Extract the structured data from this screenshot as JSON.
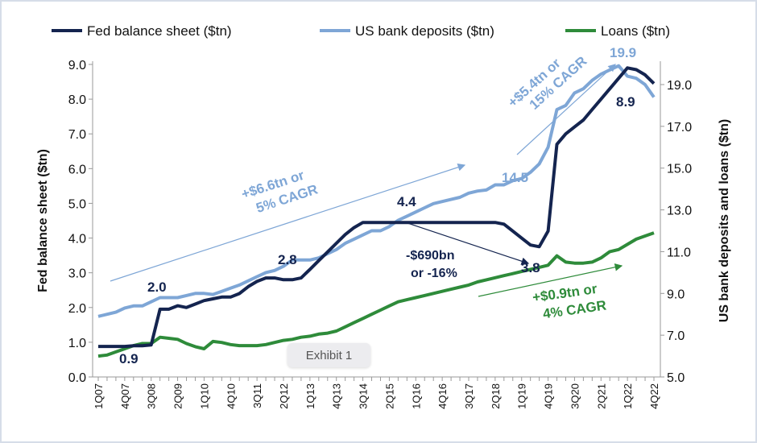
{
  "chart_data": {
    "type": "line",
    "title": "",
    "legend_position": "top",
    "legend": [
      "Fed balance sheet ($tn)",
      "US bank deposits ($tn)",
      "Loans ($tn)"
    ],
    "ylabel_left": "Fed balance sheet ($tn)",
    "ylabel_right": "US bank deposits and loans ($tn)",
    "ylim_left": [
      0,
      9
    ],
    "ylim_right": [
      5,
      20
    ],
    "yticks_left": [
      "0.0",
      "1.0",
      "2.0",
      "3.0",
      "4.0",
      "5.0",
      "6.0",
      "7.0",
      "8.0",
      "9.0"
    ],
    "yticks_right": [
      "5.0",
      "7.0",
      "9.0",
      "11.0",
      "13.0",
      "15.0",
      "17.0",
      "19.0"
    ],
    "xtick_labels": [
      "1Q07",
      "4Q07",
      "3Q08",
      "2Q09",
      "1Q10",
      "4Q10",
      "3Q11",
      "2Q12",
      "1Q13",
      "4Q13",
      "3Q14",
      "2Q15",
      "1Q16",
      "4Q16",
      "3Q17",
      "2Q18",
      "1Q19",
      "4Q19",
      "3Q20",
      "2Q21",
      "1Q22",
      "4Q22"
    ],
    "n_quarters": 64,
    "series": [
      {
        "name": "Fed balance sheet ($tn)",
        "axis": "left",
        "color": "#14244f",
        "values": [
          0.88,
          0.88,
          0.88,
          0.88,
          0.9,
          0.9,
          0.92,
          1.95,
          1.95,
          2.05,
          2.0,
          2.1,
          2.2,
          2.25,
          2.3,
          2.3,
          2.4,
          2.6,
          2.75,
          2.85,
          2.85,
          2.8,
          2.8,
          2.85,
          3.1,
          3.35,
          3.6,
          3.85,
          4.1,
          4.3,
          4.45,
          4.45,
          4.45,
          4.45,
          4.45,
          4.45,
          4.45,
          4.45,
          4.45,
          4.45,
          4.45,
          4.45,
          4.45,
          4.45,
          4.45,
          4.45,
          4.4,
          4.2,
          4.0,
          3.8,
          3.75,
          4.2,
          6.7,
          7.0,
          7.2,
          7.4,
          7.7,
          8.0,
          8.3,
          8.6,
          8.9,
          8.85,
          8.7,
          8.45
        ]
      },
      {
        "name": "US bank deposits ($tn)",
        "axis": "right",
        "color": "#7ea6d6",
        "values": [
          7.9,
          8.0,
          8.1,
          8.3,
          8.4,
          8.4,
          8.6,
          8.8,
          8.8,
          8.8,
          8.9,
          9.0,
          9.0,
          8.95,
          9.1,
          9.25,
          9.4,
          9.6,
          9.8,
          10.0,
          10.1,
          10.3,
          10.6,
          10.6,
          10.6,
          10.7,
          10.9,
          11.1,
          11.4,
          11.6,
          11.8,
          12.0,
          12.0,
          12.2,
          12.5,
          12.7,
          12.9,
          13.1,
          13.3,
          13.4,
          13.5,
          13.6,
          13.8,
          13.9,
          13.95,
          14.2,
          14.2,
          14.4,
          14.5,
          14.8,
          15.2,
          16.0,
          17.8,
          18.0,
          18.6,
          18.8,
          19.2,
          19.5,
          19.7,
          19.9,
          19.4,
          19.3,
          19.0,
          18.4
        ]
      },
      {
        "name": "Loans ($tn)",
        "axis": "right",
        "color": "#2e8b3a",
        "values": [
          6.0,
          6.05,
          6.2,
          6.35,
          6.5,
          6.6,
          6.6,
          6.9,
          6.85,
          6.8,
          6.6,
          6.45,
          6.35,
          6.7,
          6.65,
          6.55,
          6.5,
          6.5,
          6.5,
          6.55,
          6.65,
          6.75,
          6.8,
          6.9,
          6.95,
          7.05,
          7.1,
          7.2,
          7.4,
          7.6,
          7.8,
          8.0,
          8.2,
          8.4,
          8.6,
          8.7,
          8.8,
          8.9,
          9.0,
          9.1,
          9.2,
          9.3,
          9.4,
          9.55,
          9.65,
          9.75,
          9.85,
          9.95,
          10.05,
          10.15,
          10.25,
          10.35,
          10.8,
          10.5,
          10.45,
          10.45,
          10.5,
          10.7,
          11.0,
          11.1,
          11.35,
          11.6,
          11.75,
          11.9
        ]
      }
    ],
    "annotations": {
      "fed_start": "0.9",
      "fed_2008": "2.0",
      "fed_2012": "2.8",
      "fed_2015": "4.4",
      "fed_2019": "3.8",
      "fed_peak": "8.9",
      "dep_2019": "14.5",
      "dep_peak": "19.9",
      "dep_growth_1": "+$6.6tn or",
      "dep_growth_2": "5% CAGR",
      "dep_growth_covid_1": "+$5.4tn or",
      "dep_growth_covid_2": "15% CAGR",
      "fed_decline_1": "-$690bn",
      "fed_decline_2": "or -16%",
      "loan_growth_1": "+$0.9tn or",
      "loan_growth_2": "4% CAGR"
    }
  },
  "badge": "Exhibit 1"
}
